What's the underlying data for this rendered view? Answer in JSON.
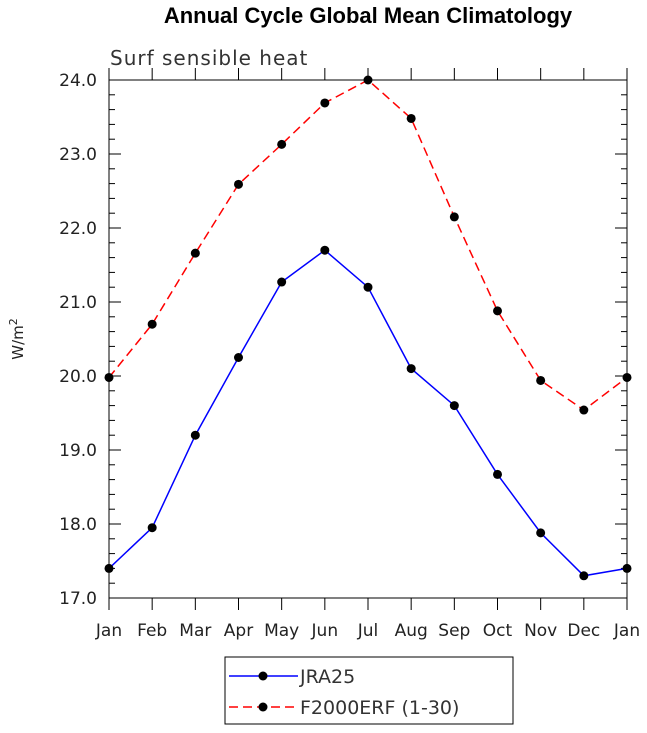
{
  "title": "Annual Cycle Global Mean Climatology",
  "subtitle": "Surf sensible heat",
  "chart_data": {
    "type": "line",
    "title": "Annual Cycle Global Mean Climatology",
    "subtitle": "Surf sensible heat",
    "xlabel": "",
    "ylabel": "W/m",
    "ylabel_superscript": "2",
    "categories": [
      "Jan",
      "Feb",
      "Mar",
      "Apr",
      "May",
      "Jun",
      "Jul",
      "Aug",
      "Sep",
      "Oct",
      "Nov",
      "Dec",
      "Jan"
    ],
    "ylim": [
      17.0,
      24.0
    ],
    "yticks": [
      "17.0",
      "18.0",
      "19.0",
      "20.0",
      "21.0",
      "22.0",
      "23.0",
      "24.0"
    ],
    "grid": false,
    "legend_position": "bottom-center",
    "series": [
      {
        "name": "JRA25",
        "color": "#0000ff",
        "style": "solid",
        "marker": "filled-circle",
        "values": [
          17.4,
          17.95,
          19.2,
          20.25,
          21.27,
          21.7,
          21.2,
          20.1,
          19.6,
          18.67,
          17.88,
          17.3,
          17.4
        ]
      },
      {
        "name": "F2000ERF (1-30)",
        "color": "#ff0000",
        "style": "dashed",
        "marker": "filled-circle",
        "values": [
          19.98,
          20.7,
          21.66,
          22.59,
          23.13,
          23.69,
          24.0,
          23.48,
          22.15,
          20.88,
          19.94,
          19.54,
          19.98
        ]
      }
    ]
  }
}
